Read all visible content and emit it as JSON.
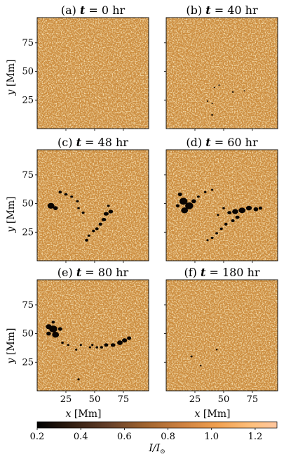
{
  "figure": {
    "panels": [
      {
        "label": "(a)",
        "t": "0",
        "activity": "none"
      },
      {
        "label": "(b)",
        "t": "40",
        "activity": "emerging"
      },
      {
        "label": "(c)",
        "t": "48",
        "activity": "growing"
      },
      {
        "label": "(d)",
        "t": "60",
        "activity": "peak"
      },
      {
        "label": "(e)",
        "t": "80",
        "activity": "separated"
      },
      {
        "label": "(f)",
        "t": "180",
        "activity": "decayed"
      }
    ],
    "title_var": "t",
    "title_eq": " = ",
    "title_unit": " hr",
    "ylabel": {
      "var": "y",
      "unit": " [Mm]"
    },
    "xlabel": {
      "var": "x",
      "unit": " [Mm]"
    },
    "yticks": [
      "25",
      "50",
      "75"
    ],
    "xticks": [
      "25",
      "50",
      "75"
    ],
    "colorbar": {
      "ticks": [
        "0.2",
        "0.4",
        "0.6",
        "0.8",
        "1.0",
        "1.2"
      ],
      "label_var": "I/I",
      "label_sub": "⊙",
      "range": [
        0.2,
        1.3
      ],
      "colormap": "copper"
    }
  },
  "colors": {
    "cmap_stops": [
      "#000000",
      "#331f12",
      "#66402a",
      "#a0642f",
      "#cc8040",
      "#f0a050",
      "#ffc17e",
      "#ffc7a0"
    ]
  }
}
